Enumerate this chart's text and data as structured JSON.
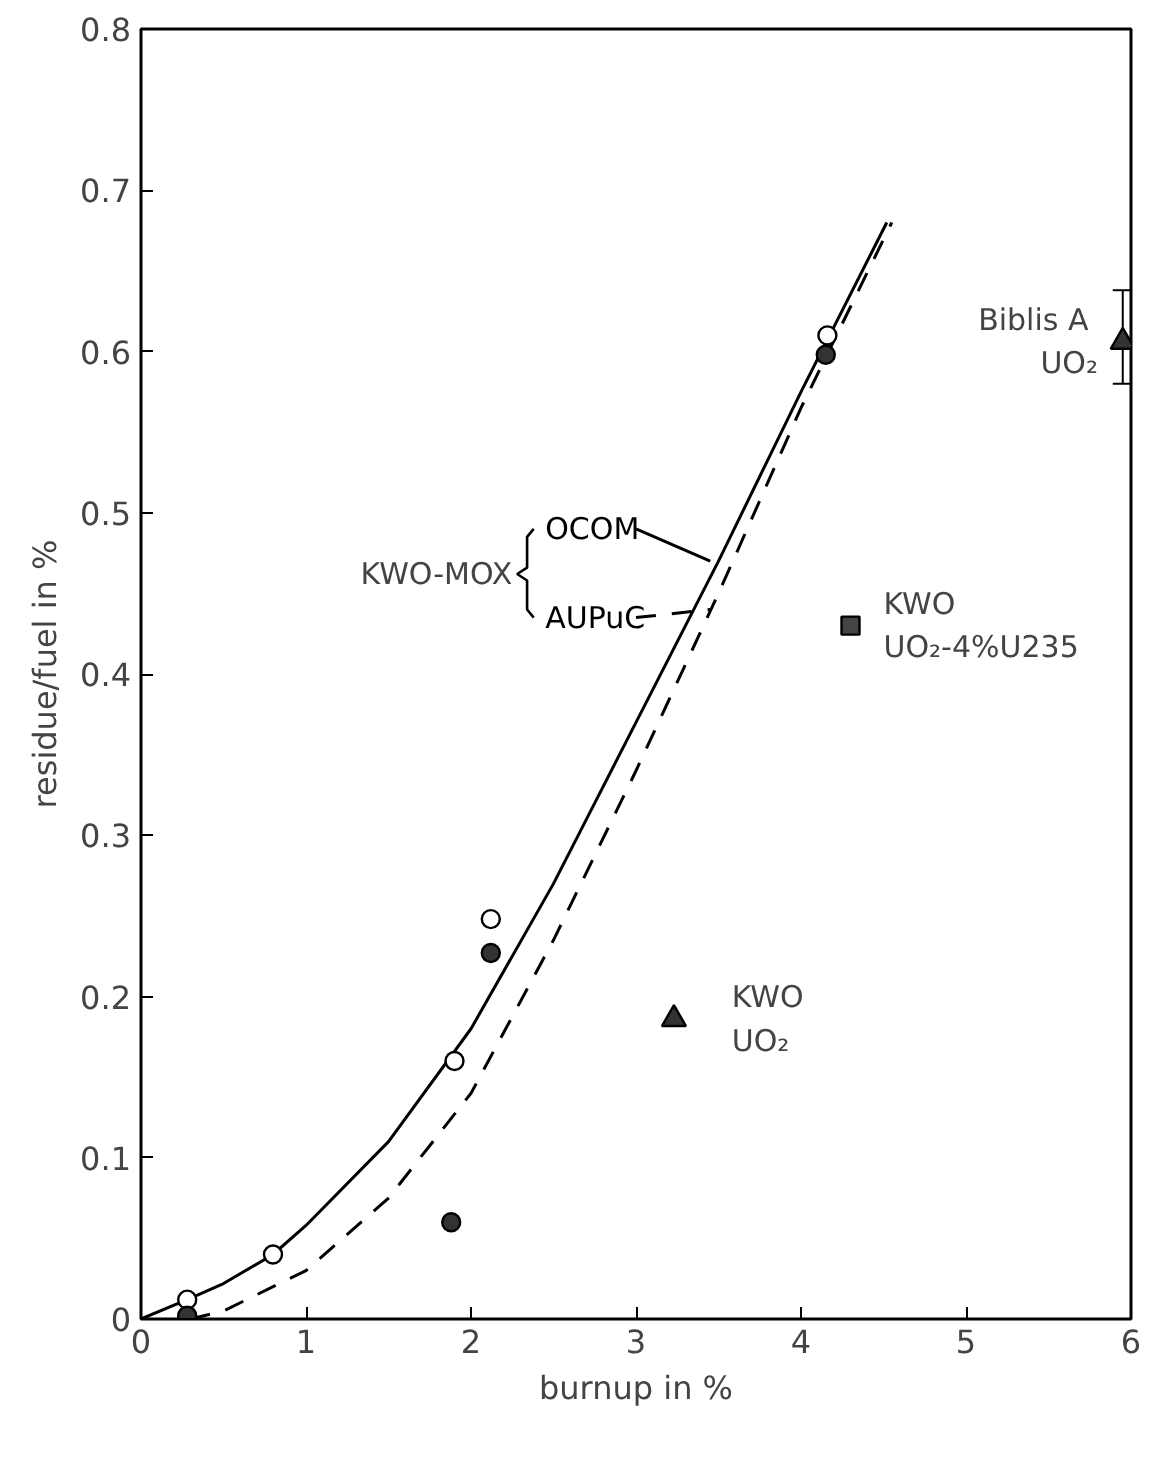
{
  "chart_data": {
    "type": "scatter",
    "xlabel": "burnup in %",
    "ylabel": "residue/fuel in %",
    "xlim": [
      0,
      6
    ],
    "ylim": [
      0,
      0.8
    ],
    "xticks": [
      0,
      1,
      2,
      3,
      4,
      5,
      6
    ],
    "yticks": [
      0,
      0.1,
      0.2,
      0.3,
      0.4,
      0.5,
      0.6,
      0.7,
      0.8
    ],
    "grid": false,
    "legend": "left",
    "annotations": [
      "KWO-MOX"
    ],
    "series": [
      {
        "name": "OCOM",
        "type": "line",
        "line_style": "solid",
        "color": "#000000",
        "x": [
          0,
          0.28,
          0.5,
          0.8,
          1,
          1.5,
          2,
          2.5,
          3,
          3.5,
          4,
          4.52
        ],
        "values": [
          0,
          0.012,
          0.022,
          0.04,
          0.058,
          0.11,
          0.18,
          0.27,
          0.37,
          0.47,
          0.575,
          0.68
        ]
      },
      {
        "name": "AUPuC",
        "type": "line",
        "line_style": "dashed",
        "color": "#000000",
        "x": [
          0.3,
          0.5,
          1,
          1.5,
          2,
          2.5,
          3,
          3.5,
          4,
          4.55
        ],
        "values": [
          0,
          0.005,
          0.03,
          0.075,
          0.14,
          0.235,
          0.34,
          0.45,
          0.565,
          0.68
        ]
      },
      {
        "marker": "circle",
        "color": "#ffffff",
        "x": [
          0.28,
          0.8,
          1.9,
          2.12,
          4.16
        ],
        "values": [
          0.012,
          0.04,
          0.16,
          0.248,
          0.61
        ]
      },
      {
        "marker": "circle",
        "color": "#333333",
        "x": [
          0.28,
          1.88,
          2.12,
          4.15
        ],
        "values": [
          0.002,
          0.06,
          0.227,
          0.598
        ]
      },
      {
        "name": "KWO\nUO₂",
        "marker": "triangle",
        "color": "#333333",
        "x": [
          3.23
        ],
        "values": [
          0.186
        ]
      },
      {
        "name": "KWO\nUO₂-4%U235",
        "marker": "square",
        "color": "#444444",
        "x": [
          4.3
        ],
        "values": [
          0.43
        ]
      },
      {
        "name": "Biblis  A\nUO₂",
        "marker": "triangle",
        "color": "#333333",
        "x": [
          5.95
        ],
        "values": [
          0.606
        ],
        "errors": [
          [
            0.58,
            0.638
          ]
        ]
      }
    ]
  }
}
